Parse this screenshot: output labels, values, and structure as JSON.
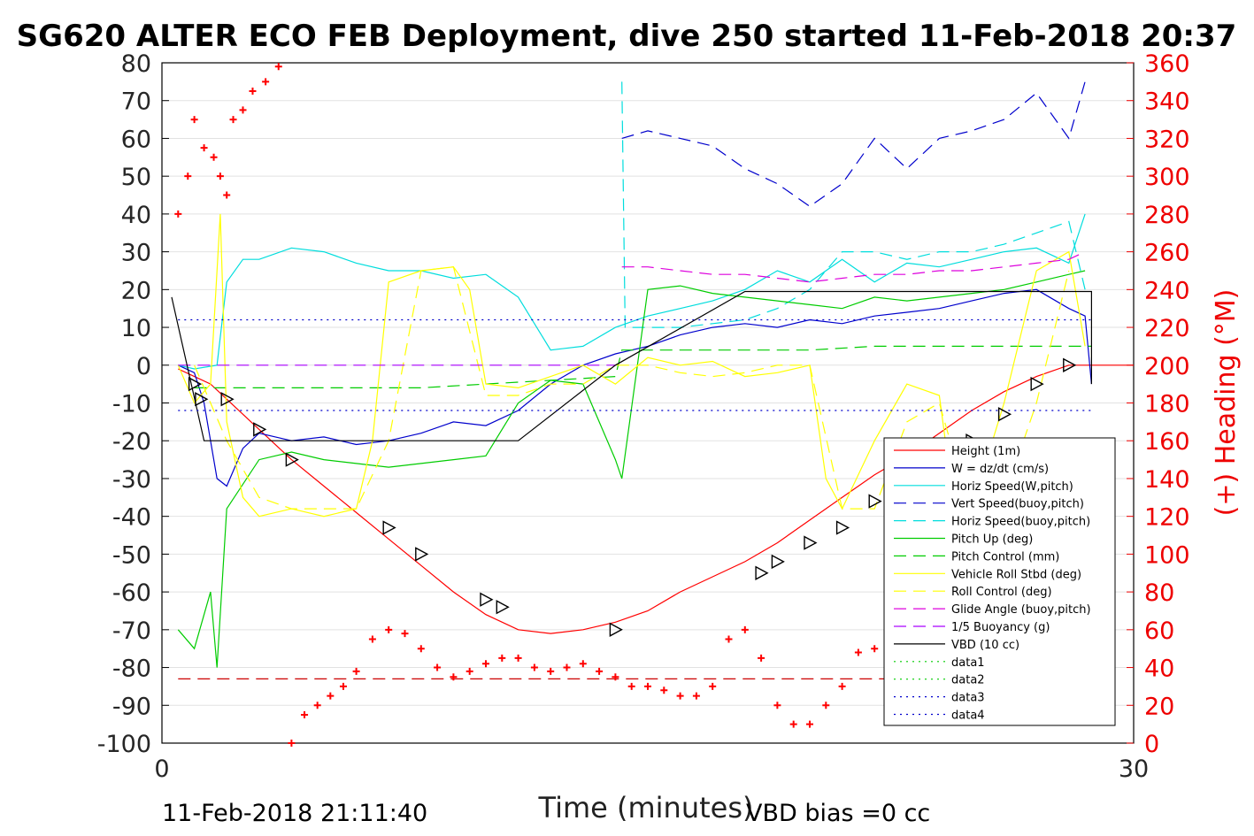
{
  "chart_data": {
    "type": "line",
    "title": "SG620 ALTER ECO FEB Deployment, dive 250 started 11-Feb-2018 20:37",
    "xlabel": "Time (minutes)",
    "ylabel": "",
    "y2label": "(+) Heading (°M)",
    "xlim": [
      0,
      30
    ],
    "ylim": [
      -100,
      80
    ],
    "y2lim": [
      0,
      360
    ],
    "x_ticks": [
      "0",
      "30"
    ],
    "y_ticks": [
      "80",
      "70",
      "60",
      "50",
      "40",
      "30",
      "20",
      "10",
      "0",
      "-10",
      "-20",
      "-30",
      "-40",
      "-50",
      "-60",
      "-70",
      "-80",
      "-90",
      "-100"
    ],
    "y2_ticks": [
      "360",
      "340",
      "320",
      "300",
      "280",
      "260",
      "240",
      "220",
      "200",
      "180",
      "160",
      "140",
      "120",
      "100",
      "80",
      "60",
      "40",
      "20",
      "0"
    ],
    "grid": true,
    "legend_position": "lower-right",
    "footer_left": "11-Feb-2018 21:11:40",
    "footer_right": "VBD bias =0 cc",
    "colors": {
      "axis2": "#ee0000"
    },
    "series": [
      {
        "name": "Height (1m)",
        "color": "#ff0000",
        "style": "solid",
        "x": [
          0.5,
          1.0,
          1.5,
          2.0,
          3.0,
          4.0,
          5.0,
          6.0,
          7.0,
          8.0,
          9.0,
          10.0,
          11.0,
          12.0,
          13.0,
          14.0,
          15.0,
          16.0,
          17.0,
          18.0,
          19.0,
          20.0,
          21.0,
          22.0,
          23.0,
          24.0,
          25.0,
          26.0,
          27.0,
          28.0,
          29.0,
          30.0
        ],
        "values": [
          -1,
          -3,
          -5,
          -9,
          -17,
          -25,
          -32,
          -39,
          -46,
          -53,
          -60,
          -66,
          -70,
          -71,
          -70,
          -68,
          -65,
          -60,
          -56,
          -52,
          -47,
          -41,
          -35,
          -29,
          -24,
          -18,
          -12,
          -7,
          -3,
          0,
          0,
          0
        ]
      },
      {
        "name": "W = dz/dt (cm/s)",
        "color": "#0000cc",
        "style": "solid",
        "x": [
          0.5,
          1.0,
          1.3,
          1.7,
          2.0,
          2.5,
          3.0,
          4.0,
          5.0,
          6.0,
          7.0,
          8.0,
          9.0,
          10.0,
          11.0,
          12.0,
          13.0,
          14.0,
          15.0,
          16.0,
          17.0,
          18.0,
          19.0,
          20.0,
          21.0,
          22.0,
          23.0,
          24.0,
          25.0,
          26.0,
          27.0,
          28.0,
          28.5,
          28.7
        ],
        "values": [
          0,
          -2,
          -10,
          -30,
          -32,
          -22,
          -18,
          -20,
          -19,
          -21,
          -20,
          -18,
          -15,
          -16,
          -12,
          -5,
          0,
          3,
          5,
          8,
          10,
          11,
          10,
          12,
          11,
          13,
          14,
          15,
          17,
          19,
          20,
          15,
          13,
          -5
        ]
      },
      {
        "name": "Horiz Speed(W,pitch)",
        "color": "#00dddd",
        "style": "solid",
        "x": [
          0.5,
          1.0,
          1.7,
          2.0,
          2.5,
          3.0,
          4.0,
          5.0,
          6.0,
          7.0,
          8.0,
          9.0,
          10.0,
          11.0,
          12.0,
          13.0,
          14.0,
          15.0,
          16.0,
          17.0,
          18.0,
          19.0,
          20.0,
          21.0,
          22.0,
          23.0,
          24.0,
          25.0,
          26.0,
          27.0,
          28.0,
          28.5
        ],
        "values": [
          0,
          -1,
          0,
          22,
          28,
          28,
          31,
          30,
          27,
          25,
          25,
          23,
          24,
          18,
          4,
          5,
          10,
          13,
          15,
          17,
          20,
          25,
          22,
          28,
          22,
          27,
          26,
          28,
          30,
          31,
          27,
          40
        ]
      },
      {
        "name": "Vert Speed(buoy,pitch)",
        "color": "#0000cc",
        "style": "dash",
        "x": [
          14.2,
          15.0,
          16.0,
          17.0,
          18.0,
          19.0,
          20.0,
          21.0,
          22.0,
          23.0,
          24.0,
          25.0,
          26.0,
          27.0,
          28.0,
          28.5
        ],
        "values": [
          60,
          62,
          60,
          58,
          52,
          48,
          42,
          48,
          60,
          52,
          60,
          62,
          65,
          72,
          60,
          75
        ]
      },
      {
        "name": "Horiz Speed(buoy,pitch)",
        "color": "#00dddd",
        "style": "dash",
        "x": [
          14.2,
          14.3,
          15.0,
          16.0,
          17.0,
          18.0,
          19.0,
          20.0,
          21.0,
          22.0,
          23.0,
          24.0,
          25.0,
          26.0,
          27.0,
          28.0,
          28.5
        ],
        "values": [
          75,
          10,
          10,
          10,
          11,
          12,
          15,
          20,
          30,
          30,
          28,
          30,
          30,
          32,
          35,
          38,
          20
        ]
      },
      {
        "name": "Pitch Up (deg)",
        "color": "#00cc00",
        "style": "solid",
        "x": [
          0.5,
          1.0,
          1.5,
          1.7,
          2.0,
          3.0,
          4.0,
          5.0,
          6.0,
          7.0,
          8.0,
          9.0,
          10.0,
          11.0,
          12.0,
          13.0,
          14.0,
          14.2,
          15.0,
          16.0,
          17.0,
          18.0,
          19.0,
          20.0,
          21.0,
          22.0,
          23.0,
          24.0,
          25.0,
          26.0,
          27.0,
          28.0,
          28.5
        ],
        "values": [
          -70,
          -75,
          -60,
          -80,
          -38,
          -25,
          -23,
          -25,
          -26,
          -27,
          -26,
          -25,
          -24,
          -10,
          -4,
          -5,
          -25,
          -30,
          20,
          21,
          19,
          18,
          17,
          16,
          15,
          18,
          17,
          18,
          19,
          20,
          22,
          24,
          25
        ]
      },
      {
        "name": "Pitch Control (mm)",
        "color": "#00cc00",
        "style": "dash",
        "x": [
          1.0,
          2.0,
          4.0,
          6.0,
          8.0,
          10.0,
          12.0,
          14.0,
          14.2,
          16.0,
          18.0,
          20.0,
          22.0,
          24.0,
          26.0,
          28.0,
          28.7
        ],
        "values": [
          -6,
          -6,
          -6,
          -6,
          -6,
          -5,
          -4,
          -3,
          4,
          4,
          4,
          4,
          5,
          5,
          5,
          5,
          5
        ]
      },
      {
        "name": "Vehicle Roll Stbd (deg)",
        "color": "#ffff00",
        "style": "solid",
        "x": [
          0.5,
          1.0,
          1.5,
          1.8,
          2.0,
          2.5,
          3.0,
          4.0,
          5.0,
          6.0,
          6.5,
          7.0,
          8.0,
          9.0,
          9.5,
          10.0,
          11.0,
          12.0,
          13.0,
          14.0,
          15.0,
          16.0,
          17.0,
          18.0,
          19.0,
          20.0,
          20.5,
          21.0,
          22.0,
          23.0,
          24.0,
          24.5,
          25.0,
          26.0,
          27.0,
          28.0,
          28.5
        ],
        "values": [
          0,
          -10,
          -5,
          40,
          -15,
          -35,
          -40,
          -38,
          -40,
          -38,
          -20,
          22,
          25,
          26,
          20,
          -5,
          -6,
          -3,
          0,
          -5,
          2,
          0,
          1,
          -3,
          -2,
          0,
          -30,
          -38,
          -20,
          -5,
          -8,
          -40,
          -38,
          -10,
          25,
          30,
          5
        ]
      },
      {
        "name": "Roll Control (deg)",
        "color": "#ffff00",
        "style": "dash",
        "x": [
          1.0,
          2.0,
          3.0,
          4.0,
          5.0,
          6.0,
          7.0,
          8.0,
          9.0,
          10.0,
          11.0,
          12.0,
          13.0,
          14.0,
          15.0,
          16.0,
          17.0,
          18.0,
          19.0,
          20.0,
          21.0,
          22.0,
          23.0,
          24.0,
          25.0,
          26.0,
          27.0,
          28.0
        ],
        "values": [
          0,
          -20,
          -35,
          -38,
          -38,
          -38,
          -20,
          25,
          26,
          -8,
          -8,
          -5,
          -5,
          0,
          0,
          -2,
          -3,
          -2,
          0,
          0,
          -38,
          -38,
          -15,
          -10,
          -40,
          -35,
          -10,
          25
        ]
      },
      {
        "name": "Glide Angle (buoy,pitch)",
        "color": "#dd00dd",
        "style": "dash",
        "x": [
          14.2,
          15.0,
          16.0,
          17.0,
          18.0,
          19.0,
          20.0,
          21.0,
          22.0,
          23.0,
          24.0,
          25.0,
          26.0,
          27.0,
          28.0,
          28.5
        ],
        "values": [
          26,
          26,
          25,
          24,
          24,
          23,
          22,
          23,
          24,
          24,
          25,
          25,
          26,
          27,
          28,
          30
        ]
      },
      {
        "name": "1/5 Buoyancy (g)",
        "color": "#aa00ff",
        "style": "dash",
        "x": [
          0.5,
          14.0
        ],
        "values": [
          0,
          0
        ]
      },
      {
        "name": "VBD (10 cc)",
        "color": "#000000",
        "style": "solid",
        "x": [
          0.3,
          1.3,
          11.0,
          14.0,
          18.0,
          28.7,
          28.7
        ],
        "values": [
          18,
          -20,
          -20,
          0,
          19.5,
          19.5,
          -5
        ]
      },
      {
        "name": "data1",
        "color": "#00cc00",
        "style": "dot",
        "x": [],
        "values": []
      },
      {
        "name": "data2",
        "color": "#00cc00",
        "style": "dot",
        "x": [],
        "values": []
      },
      {
        "name": "data3",
        "color": "#0000cc",
        "style": "dot",
        "x": [
          0.5,
          28.7
        ],
        "values": [
          12,
          12
        ]
      },
      {
        "name": "data4",
        "color": "#0000cc",
        "style": "dot",
        "x": [
          0.5,
          28.7
        ],
        "values": [
          -12,
          -12
        ]
      }
    ],
    "heading": {
      "name": "Heading",
      "color": "#ff0000",
      "x": [
        0.5,
        0.8,
        1.0,
        1.3,
        1.6,
        1.8,
        2.0,
        2.2,
        2.5,
        2.8,
        3.2,
        3.6,
        4.0,
        4.4,
        4.8,
        5.2,
        5.6,
        6.0,
        6.5,
        7.0,
        7.5,
        8.0,
        8.5,
        9.0,
        9.5,
        10.0,
        10.5,
        11.0,
        11.5,
        12.0,
        12.5,
        13.0,
        13.5,
        14.0,
        14.5,
        15.0,
        15.5,
        16.0,
        16.5,
        17.0,
        17.5,
        18.0,
        18.5,
        19.0,
        19.5,
        20.0,
        20.5,
        21.0,
        21.5,
        22.0,
        22.5,
        23.0,
        23.5,
        24.0,
        24.5,
        25.0,
        25.5,
        26.0,
        26.5,
        27.0,
        27.5,
        28.0,
        28.3,
        28.5
      ],
      "values": [
        280,
        300,
        330,
        315,
        310,
        300,
        290,
        330,
        335,
        345,
        350,
        358,
        0,
        15,
        20,
        25,
        30,
        38,
        55,
        60,
        58,
        50,
        40,
        35,
        38,
        42,
        45,
        45,
        40,
        38,
        40,
        42,
        38,
        35,
        30,
        30,
        28,
        25,
        25,
        30,
        55,
        60,
        45,
        20,
        10,
        10,
        20,
        30,
        48,
        50,
        55,
        45,
        35,
        30,
        22,
        18,
        22,
        35,
        75,
        100,
        105,
        100,
        95,
        60
      ]
    },
    "markers": {
      "name": "dive markers",
      "shape": "triangle",
      "x": [
        1.0,
        1.2,
        2.0,
        3.0,
        4.0,
        7.0,
        8.0,
        10.0,
        10.5,
        14.0,
        18.5,
        19.0,
        20.0,
        21.0,
        22.0,
        23.0,
        24.0,
        25.0,
        26.0,
        27.0,
        28.0
      ],
      "values": [
        -5,
        -9,
        -9,
        -17,
        -25,
        -43,
        -50,
        -62,
        -64,
        -70,
        -55,
        -52,
        -47,
        -43,
        -36,
        -29,
        -24,
        -20,
        -13,
        -5,
        0
      ]
    },
    "reference_line": {
      "color": "#cc0000",
      "style": "dash",
      "value": -83,
      "x": [
        0.5,
        28.7
      ]
    }
  }
}
